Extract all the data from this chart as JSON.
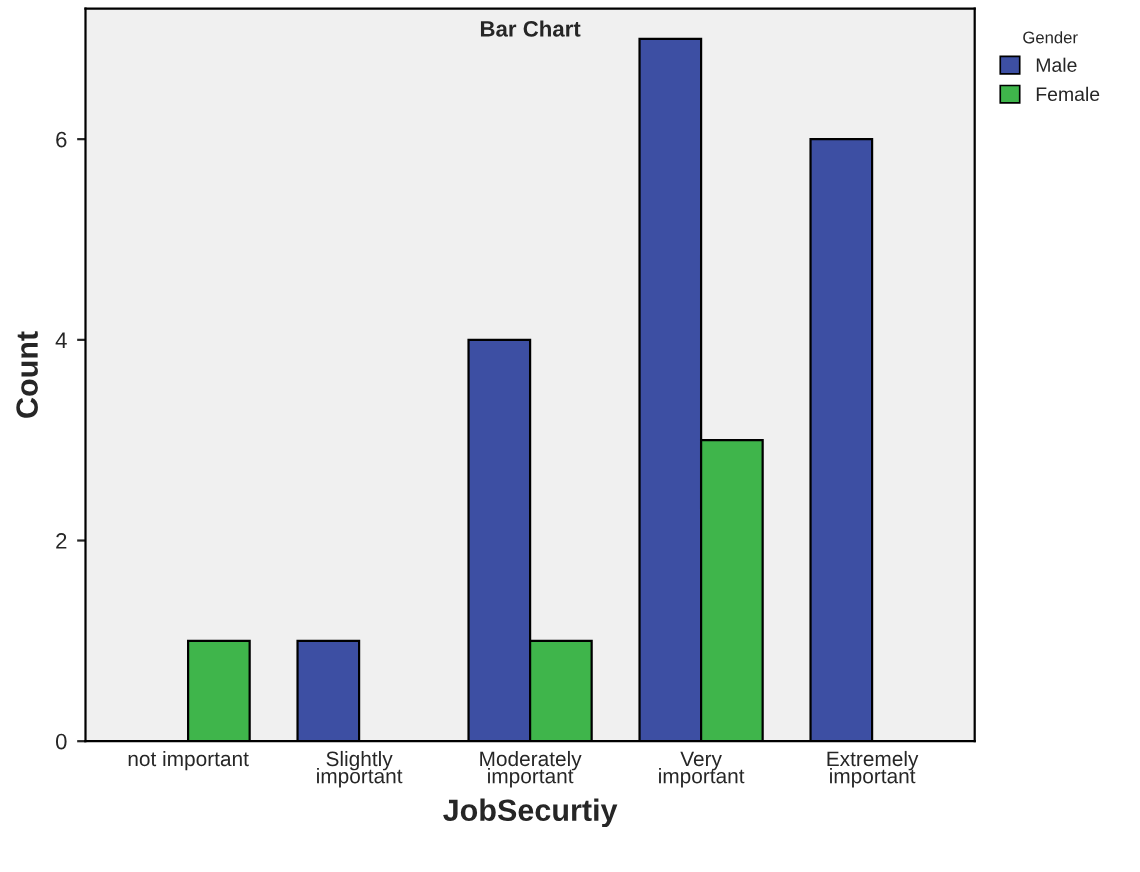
{
  "chart_data": {
    "type": "bar",
    "title": "Bar Chart",
    "xlabel": "JobSecurtiy",
    "ylabel": "Count",
    "legend_title": "Gender",
    "categories": [
      "not important",
      "Slightly\nimportant",
      "Moderately\nimportant",
      "Very\nimportant",
      "Extremely\nimportant"
    ],
    "series": [
      {
        "name": "Male",
        "color": "#3d4fa3",
        "values": [
          null,
          1,
          4,
          7,
          6
        ]
      },
      {
        "name": "Female",
        "color": "#3fb54b",
        "values": [
          1,
          null,
          1,
          3,
          null
        ]
      }
    ],
    "ylim": [
      0,
      7.3
    ],
    "yticks": [
      0,
      2,
      4,
      6
    ],
    "grid": false,
    "legend": "top right"
  }
}
